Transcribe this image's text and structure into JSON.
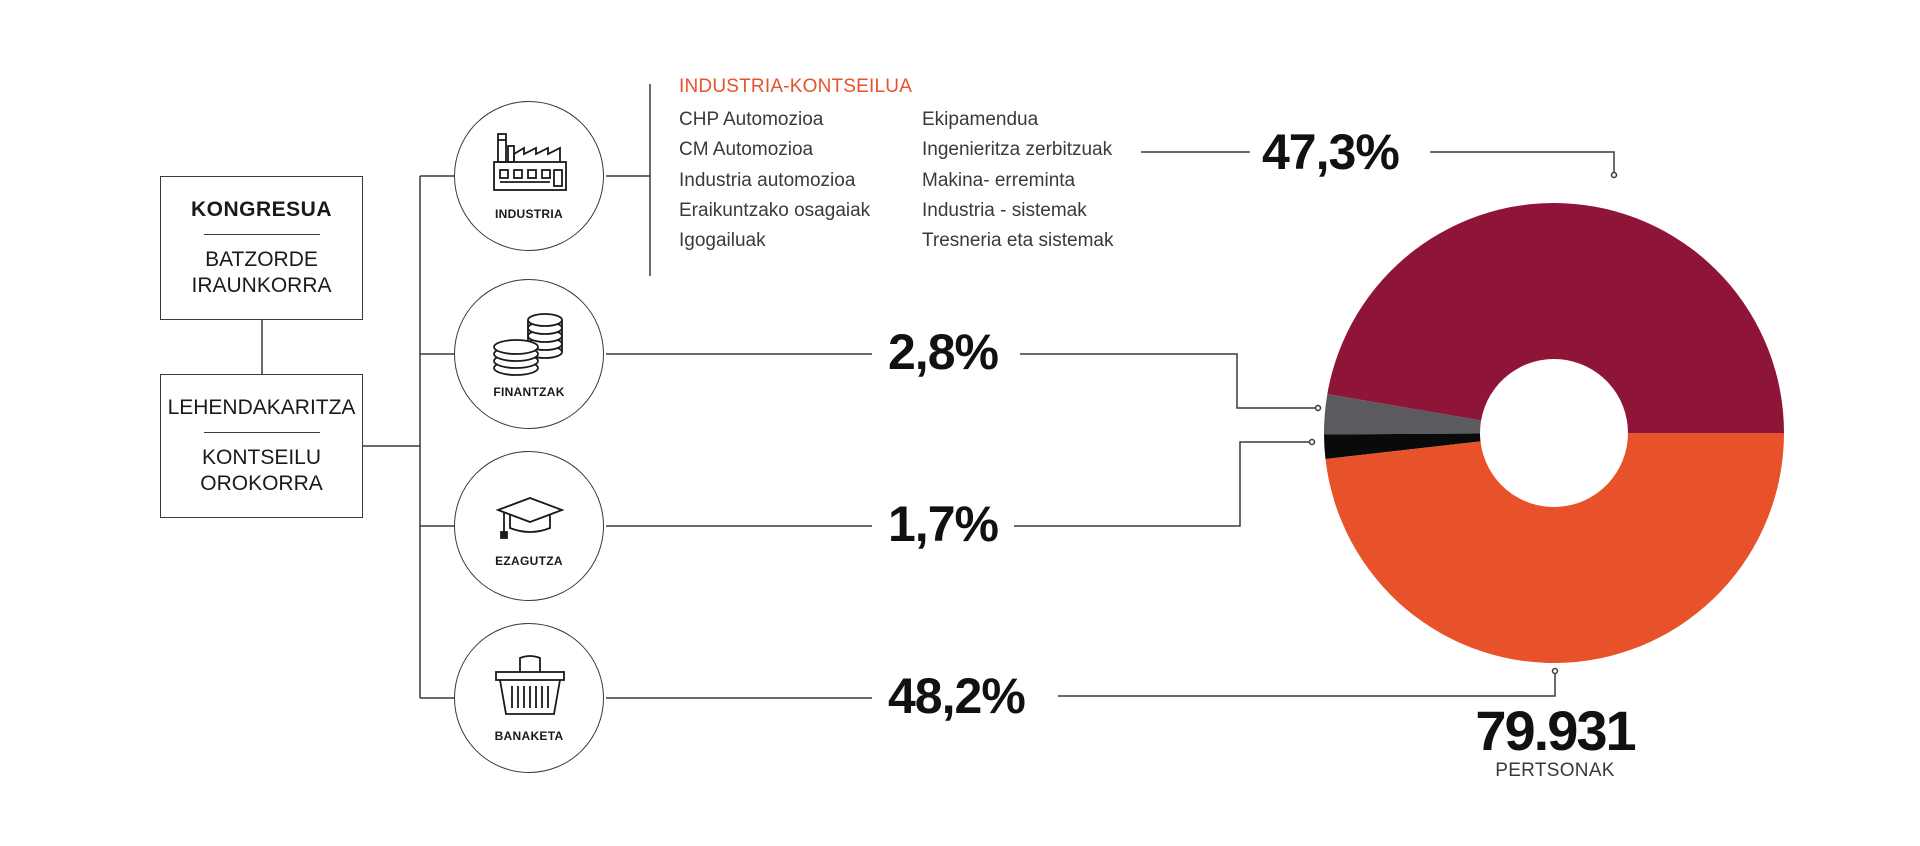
{
  "org": {
    "congress": {
      "title": "KONGRESUA",
      "subtitle": "BATZORDE IRAUNKORRA"
    },
    "presidency": {
      "title": "LEHENDAKARITZA",
      "subtitle": "KONTSEILU OROKORRA"
    }
  },
  "divisions": [
    {
      "id": "industria",
      "label": "INDUSTRIA",
      "icon": "factory-icon",
      "share": "47,3%",
      "value": 47.3
    },
    {
      "id": "finantzak",
      "label": "FINANTZAK",
      "icon": "coins-icon",
      "share": "2,8%",
      "value": 2.8
    },
    {
      "id": "ezagutza",
      "label": "EZAGUTZA",
      "icon": "graduation-cap-icon",
      "share": "1,7%",
      "value": 1.7
    },
    {
      "id": "banaketa",
      "label": "BANAKETA",
      "icon": "basket-icon",
      "share": "48,2%",
      "value": 48.2
    }
  ],
  "industry_council": {
    "heading": "INDUSTRIA-KONTSEILUA",
    "col1": [
      "CHP Automozioa",
      "CM Automozioa",
      "Industria automozioa",
      "Eraikuntzako osagaiak",
      "Igogailuak"
    ],
    "col2": [
      "Ekipamendua",
      "Ingenieritza zerbitzuak",
      "Makina- erreminta",
      "Industria - sistemak",
      "Tresneria eta sistemak"
    ]
  },
  "chart_data": {
    "type": "pie",
    "labels": [
      "INDUSTRIA",
      "FINANTZAK",
      "EZAGUTZA",
      "BANAKETA"
    ],
    "values": [
      47.3,
      2.8,
      1.7,
      48.2
    ],
    "colors": [
      "#8e1538",
      "#5b5a5f",
      "#0a0a0a",
      "#e8522a"
    ],
    "donut": true
  },
  "total": {
    "value": "79.931",
    "label": "PERTSONAK"
  },
  "colors": {
    "accent": "#e8522a",
    "line": "#3a3a3a"
  }
}
